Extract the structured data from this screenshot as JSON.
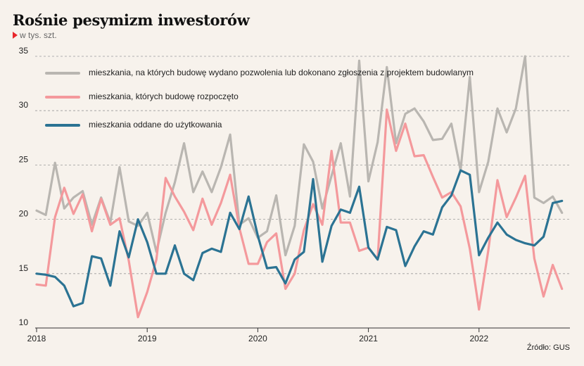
{
  "title": "Rośnie pesymizm inwestorów",
  "subtitle": "w tys. szt.",
  "source": "Źródło: GUS",
  "colors": {
    "permits": "#b9b6b1",
    "started": "#f4999c",
    "completed": "#2b7393",
    "grid": "#9a9a9a",
    "marker": "#e8262b"
  },
  "chart_data": {
    "type": "line",
    "title": "Rośnie pesymizm inwestorów",
    "ylabel": "w tys. szt.",
    "ylim": [
      10,
      35
    ],
    "yticks": [
      "10",
      "15",
      "20",
      "25",
      "30",
      "35"
    ],
    "xticks": [
      "2018",
      "2019",
      "2020",
      "2021",
      "2022"
    ],
    "grid": true,
    "legend_position": "top-left",
    "x_start": "2018-01",
    "x_step": "month",
    "series": [
      {
        "name": "mieszkania, na których budowę wydano pozwolenia lub dokonano zgłoszenia z projektem budowlanym",
        "color_key": "permits",
        "values": [
          20.8,
          20.4,
          25.2,
          21.0,
          22.0,
          22.6,
          19.5,
          22.0,
          19.7,
          24.8,
          19.8,
          19.4,
          20.6,
          17.0,
          20.6,
          23.4,
          27.0,
          22.5,
          24.4,
          22.5,
          24.8,
          27.8,
          19.5,
          20.1,
          18.3,
          18.9,
          22.2,
          16.7,
          19.4,
          26.9,
          25.3,
          21.0,
          24.0,
          27.0,
          22.1,
          34.6,
          23.5,
          27.1,
          34.0,
          27.0,
          29.7,
          30.2,
          29.0,
          27.3,
          27.4,
          28.8,
          24.5,
          33.1,
          22.5,
          25.3,
          30.2,
          28.0,
          30.2,
          35.0,
          22.0,
          21.5,
          22.1,
          20.6
        ]
      },
      {
        "name": "mieszkania, których budowę rozpoczęto",
        "color_key": "started",
        "values": [
          14.0,
          13.9,
          20.2,
          22.9,
          20.5,
          22.3,
          18.9,
          21.9,
          19.5,
          20.1,
          16.2,
          11.0,
          13.3,
          16.3,
          23.8,
          22.1,
          20.7,
          19.0,
          21.9,
          19.5,
          21.5,
          24.1,
          19.2,
          15.9,
          15.9,
          17.9,
          18.7,
          13.6,
          15.0,
          19.0,
          21.4,
          19.5,
          26.3,
          19.7,
          19.7,
          17.1,
          17.4,
          16.3,
          30.1,
          26.3,
          28.8,
          25.8,
          25.9,
          23.9,
          22.0,
          22.5,
          21.2,
          17.3,
          11.7,
          17.1,
          23.6,
          20.2,
          22.0,
          24.0,
          16.4,
          12.9,
          15.8,
          13.6
        ]
      },
      {
        "name": "mieszkania oddane do użytkowania",
        "color_key": "completed",
        "values": [
          15.0,
          14.9,
          14.7,
          13.9,
          12.0,
          12.3,
          16.6,
          16.4,
          13.9,
          18.9,
          16.5,
          20.0,
          17.9,
          15.0,
          15.0,
          17.6,
          15.0,
          14.4,
          16.9,
          17.3,
          17.0,
          20.6,
          19.1,
          22.1,
          18.5,
          15.5,
          15.6,
          14.1,
          16.3,
          17.0,
          23.7,
          16.1,
          19.4,
          20.9,
          20.6,
          23.0,
          17.4,
          16.3,
          19.3,
          19.0,
          15.7,
          17.5,
          18.9,
          18.6,
          21.1,
          22.2,
          24.5,
          24.1,
          16.7,
          18.3,
          19.7,
          18.6,
          18.1,
          17.8,
          17.6,
          18.4,
          21.5,
          21.7
        ]
      }
    ]
  }
}
